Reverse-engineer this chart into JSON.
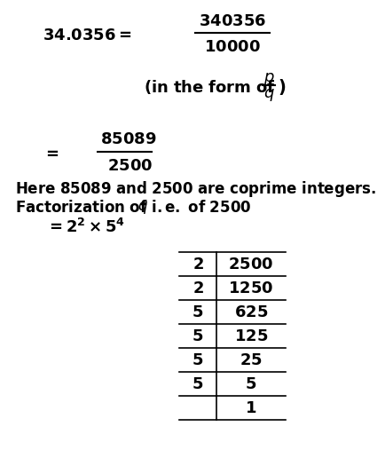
{
  "bg_color": "#ffffff",
  "line1_left": "34.0356 = ",
  "line1_num": "340356",
  "line1_den": "10000",
  "line2_text": "(in the form of ",
  "line2_p": "p",
  "line2_q": "q",
  "line3_num": "85089",
  "line3_den": "2500",
  "line4": "Here 85089 and 2500 are coprime integers.",
  "line5a": "Factorization of ",
  "line5b": "q",
  "line5c": " i.e. of 2500",
  "line6": "= 2^2 \\times 5^4",
  "table_divisors": [
    "2",
    "2",
    "5",
    "5",
    "5",
    "5"
  ],
  "table_dividends": [
    "2500",
    "1250",
    "625",
    "125",
    "25",
    "5"
  ],
  "table_final": "1",
  "fs_main": 13,
  "fs_text": 12
}
